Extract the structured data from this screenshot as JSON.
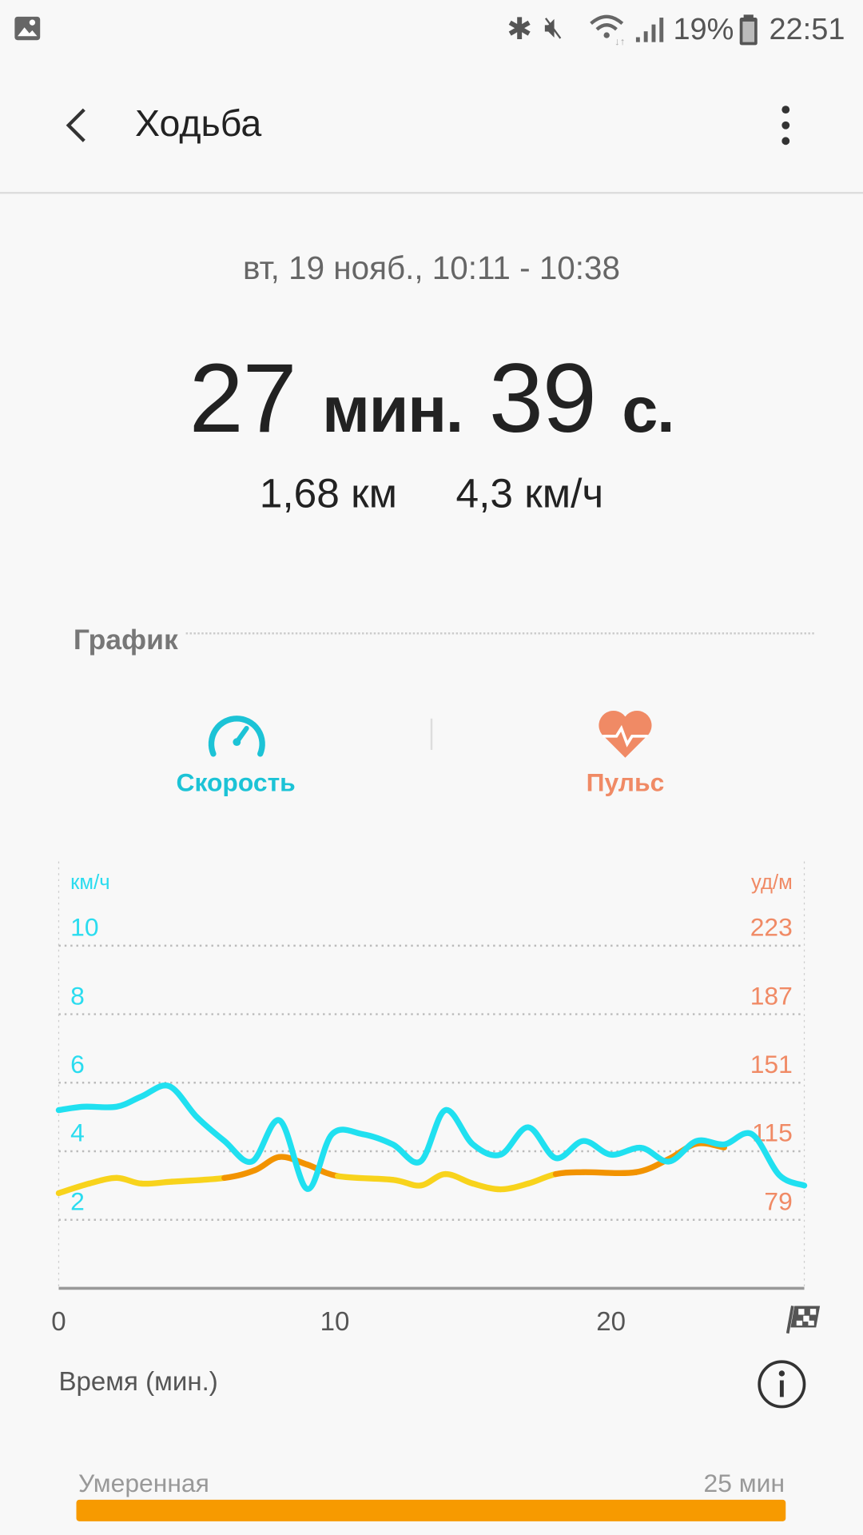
{
  "status_bar": {
    "battery": "19%",
    "time": "22:51",
    "icons": [
      "image-icon",
      "bluetooth-icon",
      "mute-icon",
      "wifi-icon",
      "signal-icon",
      "battery-icon"
    ]
  },
  "header": {
    "title": "Ходьба",
    "back_icon": "arrow-left-icon",
    "menu_icon": "more-vertical-icon"
  },
  "summary": {
    "date_range": "вт, 19 нояб., 10:11 - 10:38",
    "duration_min": "27",
    "duration_min_unit": "мин.",
    "duration_sec": "39",
    "duration_sec_unit": "с.",
    "distance": "1,68 км",
    "speed": "4,3 км/ч"
  },
  "graph": {
    "section_label": "График",
    "tabs": [
      {
        "label": "Скорость",
        "icon": "speedometer-icon",
        "color": "#1cc3d6"
      },
      {
        "label": "Пульс",
        "icon": "heart-pulse-icon",
        "color": "#f08a65"
      }
    ]
  },
  "chart_data": {
    "type": "line",
    "xlabel": "Время (мин.)",
    "xlim": [
      0,
      27
    ],
    "x_ticks": [
      "0",
      "10",
      "20"
    ],
    "finish_icon": "checkered-flag-icon",
    "y_left": {
      "label": "км/ч",
      "ticks": [
        "10",
        "8",
        "6",
        "4",
        "2"
      ],
      "range": [
        0,
        12
      ],
      "color": "#2adcef"
    },
    "y_right": {
      "label": "уд/м",
      "ticks": [
        "223",
        "187",
        "151",
        "115",
        "79"
      ],
      "range": [
        43,
        259
      ],
      "color": "#f08a65"
    },
    "grid": true,
    "series": [
      {
        "axis": "left",
        "color": "#20e0f0",
        "x": [
          0,
          0.9,
          2.1,
          3.0,
          4.0,
          5.0,
          6.0,
          7.0,
          8.0,
          9.0,
          9.9,
          11.0,
          12.1,
          13.1,
          14.0,
          15.0,
          16.0,
          17.0,
          18.0,
          19.0,
          20.0,
          21.1,
          22.1,
          23.1,
          24.1,
          25.1,
          26.1,
          27.0
        ],
        "y": [
          5.2,
          5.3,
          5.3,
          5.6,
          5.9,
          5.0,
          4.3,
          3.7,
          4.9,
          2.9,
          4.5,
          4.5,
          4.2,
          3.7,
          5.2,
          4.2,
          3.9,
          4.7,
          3.8,
          4.3,
          3.9,
          4.1,
          3.7,
          4.3,
          4.2,
          4.5,
          3.3,
          3.0
        ]
      },
      {
        "axis": "right",
        "colors": {
          "low": "#f8d31c",
          "high": "#f29300"
        },
        "x": [
          0,
          1.1,
          2.1,
          3.0,
          4.1,
          6.0,
          7.1,
          8.0,
          9.0,
          10.1,
          12.1,
          13.1,
          14.0,
          15.0,
          16.0,
          17.0,
          18.0,
          19.0,
          20.9,
          22.1,
          23.1,
          24.1
        ],
        "y": [
          93,
          98,
          101,
          98,
          99,
          101,
          105,
          112,
          108,
          102,
          100,
          97,
          103,
          98,
          95,
          98,
          103,
          104,
          104,
          111,
          119,
          117
        ]
      }
    ]
  },
  "intensity": {
    "zone": "Умеренная",
    "duration": "25 мин",
    "fraction": 1.0,
    "color": "#f79a00"
  },
  "info_icon": "info-icon"
}
